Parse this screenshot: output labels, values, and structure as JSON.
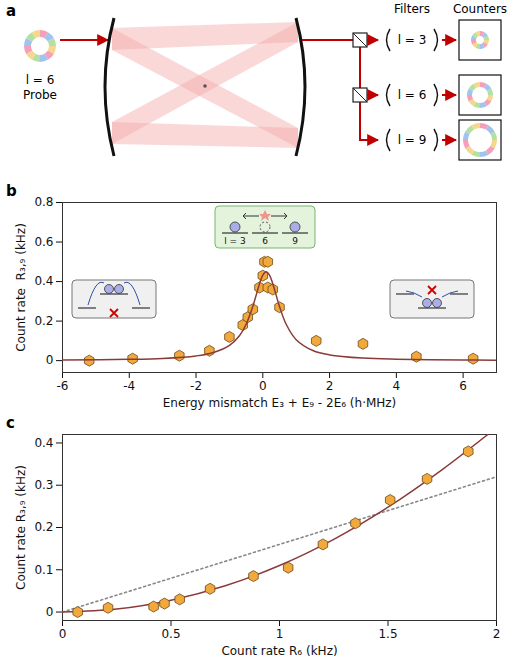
{
  "panel_a": {
    "panel": "a",
    "probe": "l = 6",
    "probe_text": "Probe",
    "filters_head": "Filters",
    "counters_head": "Counters",
    "filters": [
      "l = 3",
      "l = 6",
      "l = 9"
    ]
  },
  "chart_data": [
    {
      "panel": "b",
      "type": "scatter",
      "x_label": "Energy mismatch E₃ + E₉ - 2E₆ (h·MHz)",
      "y_label": "Count rate  R₃,₉ (kHz)",
      "xlim": [
        -6,
        7
      ],
      "xticks": [
        -6,
        -4,
        -2,
        0,
        2,
        4,
        6
      ],
      "ylim": [
        -0.06,
        0.8
      ],
      "yticks": [
        0,
        0.2,
        0.4,
        0.6,
        0.8
      ],
      "annotations": [
        "l = 3",
        "6",
        "9"
      ],
      "series": [
        {
          "type": "scatter",
          "color": "#f2a93b",
          "marker": "hexagon",
          "x": [
            -5.2,
            -3.9,
            -2.5,
            -1.6,
            -1.0,
            -0.6,
            -0.45,
            -0.3,
            -0.1,
            0.0,
            0.05,
            0.15,
            0.15,
            0.3,
            0.5,
            1.6,
            3.0,
            4.6,
            6.3
          ],
          "values": [
            0.0,
            0.01,
            0.025,
            0.05,
            0.12,
            0.18,
            0.22,
            0.26,
            0.37,
            0.43,
            0.5,
            0.5,
            0.37,
            0.36,
            0.27,
            0.1,
            0.085,
            0.02,
            0.01
          ]
        },
        {
          "type": "line",
          "color": "#8b3a3a",
          "line_style": "solid",
          "x": [
            -6,
            -4,
            -3,
            -2,
            -1.5,
            -1,
            -0.7,
            -0.5,
            -0.3,
            -0.1,
            0,
            0.1,
            0.2,
            0.3,
            0.5,
            0.7,
            1,
            1.5,
            2,
            3,
            4,
            6,
            7
          ],
          "values": [
            0.003,
            0.0066,
            0.0114,
            0.024,
            0.04,
            0.077,
            0.126,
            0.184,
            0.274,
            0.388,
            0.433,
            0.45,
            0.433,
            0.388,
            0.274,
            0.184,
            0.106,
            0.051,
            0.029,
            0.013,
            0.0073,
            0.0032,
            0.0022
          ]
        }
      ]
    },
    {
      "panel": "c",
      "type": "scatter",
      "x_label": "Count rate R₆ (kHz)",
      "y_label": "Count rate R₃,₉ (kHz)",
      "xlim": [
        0,
        2
      ],
      "xticks": [
        0,
        0.5,
        1,
        1.5,
        2
      ],
      "ylim": [
        -0.02,
        0.42
      ],
      "yticks": [
        0,
        0.1,
        0.2,
        0.3,
        0.4
      ],
      "series": [
        {
          "type": "line",
          "color": "#888888",
          "line_style": "dotted",
          "x": [
            0,
            2
          ],
          "values": [
            0,
            0.32
          ]
        },
        {
          "type": "line",
          "color": "#8b3a3a",
          "line_style": "solid",
          "x": [
            0,
            0.25,
            0.5,
            0.75,
            1.0,
            1.25,
            1.5,
            1.75,
            1.96
          ],
          "values": [
            0,
            0.007,
            0.028,
            0.062,
            0.11,
            0.172,
            0.248,
            0.337,
            0.42
          ]
        },
        {
          "type": "scatter",
          "color": "#f2a93b",
          "marker": "hexagon",
          "x": [
            0.07,
            0.21,
            0.42,
            0.47,
            0.54,
            0.68,
            0.88,
            1.04,
            1.2,
            1.35,
            1.51,
            1.68,
            1.87
          ],
          "values": [
            0.0,
            0.01,
            0.013,
            0.02,
            0.03,
            0.055,
            0.085,
            0.105,
            0.16,
            0.21,
            0.265,
            0.315,
            0.38
          ],
          "x_err": [
            0.02,
            0.02,
            0.02,
            0.02,
            0.02,
            0.02,
            0.02,
            0.02,
            0.02,
            0.02,
            0.02,
            0.02,
            0.02
          ],
          "y_err": [
            0.005,
            0.005,
            0.005,
            0.005,
            0.005,
            0.005,
            0.005,
            0.005,
            0.005,
            0.005,
            0.005,
            0.005,
            0.005
          ]
        }
      ]
    }
  ]
}
